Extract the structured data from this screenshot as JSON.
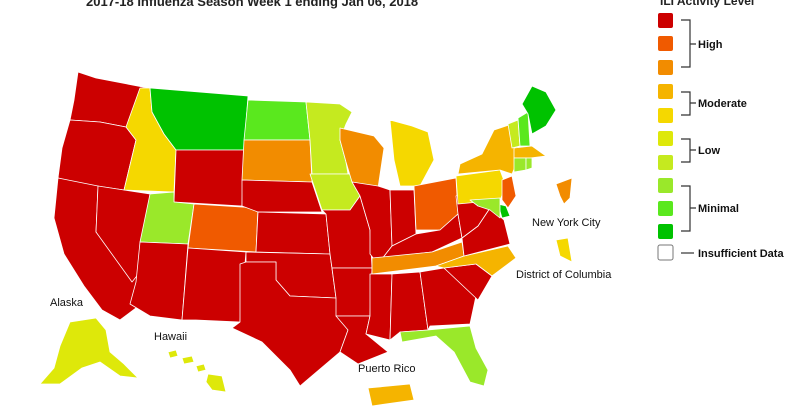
{
  "map": {
    "title": "2017-18 Influenza Season Week 1 ending Jan 06, 2018",
    "labels": {
      "alaska": "Alaska",
      "hawaii": "Hawaii",
      "puerto_rico": "Puerto Rico",
      "new_york_city": "New York City",
      "district_of_columbia": "District of Columbia"
    }
  },
  "legend": {
    "title": "ILI Activity Level",
    "levels": [
      {
        "level": 10,
        "color": "#cc0000"
      },
      {
        "level": 9,
        "color": "#f05a00"
      },
      {
        "level": 8,
        "color": "#f28c00"
      },
      {
        "level": 7,
        "color": "#f5b400"
      },
      {
        "level": 6,
        "color": "#f5d800"
      },
      {
        "level": 5,
        "color": "#dee80a"
      },
      {
        "level": 4,
        "color": "#c5ea1f"
      },
      {
        "level": 3,
        "color": "#9ae82a"
      },
      {
        "level": 2,
        "color": "#5ae81e"
      },
      {
        "level": 1,
        "color": "#00c200"
      }
    ],
    "groups": [
      "High",
      "Moderate",
      "Low",
      "Minimal"
    ],
    "insufficient": {
      "label": "Insufficient Data",
      "color": "#ffffff"
    }
  },
  "states": {
    "WA": 10,
    "OR": 10,
    "CA": 10,
    "NV": 10,
    "ID": 6,
    "MT": 1,
    "WY": 10,
    "UT": 3,
    "AZ": 10,
    "CO": 9,
    "NM": 10,
    "ND": 2,
    "SD": 8,
    "NE": 10,
    "KS": 10,
    "OK": 10,
    "TX": 10,
    "MN": 4,
    "IA": 4,
    "MO": 10,
    "AR": 10,
    "LA": 10,
    "WI": 8,
    "IL": 10,
    "MI": 6,
    "IN": 10,
    "OH": 9,
    "KY": 10,
    "TN": 8,
    "MS": 10,
    "AL": 10,
    "GA": 10,
    "FL": 3,
    "SC": 10,
    "NC": 7,
    "VA": 10,
    "WV": 10,
    "PA": 6,
    "NY": 7,
    "VT": 4,
    "NH": 2,
    "ME": 1,
    "MA": 7,
    "CT": 3,
    "RI": 3,
    "NJ": 9,
    "DE": 1,
    "MD": 3,
    "AK": 5,
    "HI": 5,
    "PR": 7,
    "NYC": 8,
    "DC": 6
  }
}
